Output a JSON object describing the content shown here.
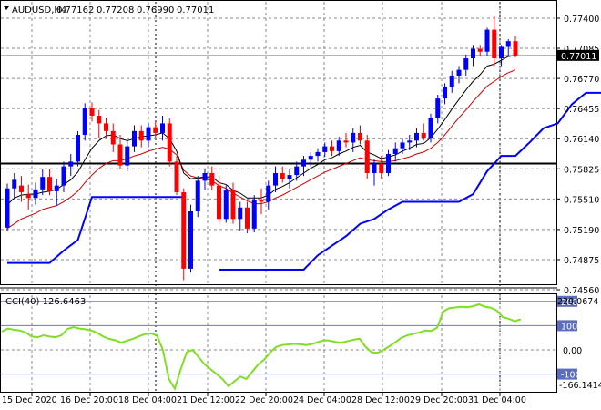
{
  "header": {
    "symbol": "AUDUSD,H4",
    "open": "0.77162",
    "high": "0.77208",
    "low": "0.76990",
    "close": "0.77011"
  },
  "price_axis": {
    "ticks": [
      {
        "label": "0.77400",
        "value": 0.774
      },
      {
        "label": "0.77085",
        "value": 0.77085
      },
      {
        "label": "0.76770",
        "value": 0.7677
      },
      {
        "label": "0.76455",
        "value": 0.76455
      },
      {
        "label": "0.76140",
        "value": 0.7614
      },
      {
        "label": "0.75825",
        "value": 0.75825
      },
      {
        "label": "0.75510",
        "value": 0.7551
      },
      {
        "label": "0.75190",
        "value": 0.7519
      },
      {
        "label": "0.74875",
        "value": 0.74875
      },
      {
        "label": "0.74560",
        "value": 0.7456
      }
    ],
    "current_price_label": "0.77011",
    "current_price": 0.77011,
    "hline_price": 0.7588
  },
  "cci": {
    "label": "CCI(40) 126.6463",
    "max_label": "229.0674",
    "min_label": "-166.1414",
    "levels": [
      {
        "label": "200",
        "value": 200
      },
      {
        "label": "100",
        "value": 100
      },
      {
        "label": "0.00",
        "value": 0
      },
      {
        "label": "-100",
        "value": -100
      }
    ],
    "line_color": "#7fdf22",
    "values": [
      75,
      88,
      83,
      80,
      72,
      55,
      52,
      60,
      55,
      52,
      60,
      86,
      94,
      88,
      85,
      80,
      70,
      55,
      45,
      40,
      30,
      38,
      46,
      56,
      65,
      68,
      60,
      0,
      -120,
      -160,
      -80,
      -10,
      0,
      -30,
      -60,
      -80,
      -100,
      -120,
      -150,
      -130,
      -110,
      -120,
      -90,
      -60,
      -40,
      -10,
      12,
      20,
      22,
      25,
      23,
      20,
      24,
      32,
      40,
      38,
      32,
      30,
      36,
      42,
      46,
      12,
      -10,
      -12,
      0,
      15,
      32,
      50,
      60,
      66,
      72,
      80,
      78,
      92,
      158,
      172,
      175,
      178,
      176,
      180,
      188,
      178,
      174,
      162,
      135,
      128,
      118,
      126
    ]
  },
  "time_axis": [
    "15 Dec 2020",
    "16 Dec 20:00",
    "18 Dec 04:00",
    "21 Dec 12:00",
    "22 Dec 20:00",
    "24 Dec 04:00",
    "28 Dec 12:00",
    "29 Dec 20:00",
    "31 Dec 04:00"
  ],
  "chart_data": {
    "type": "candlestick",
    "bull_color": "#0000ff",
    "bear_color": "#ff0000",
    "candles": [
      [
        0.7521,
        0.7567,
        0.7518,
        0.7562
      ],
      [
        0.7562,
        0.7578,
        0.7552,
        0.7571
      ],
      [
        0.7565,
        0.7575,
        0.7548,
        0.7558
      ],
      [
        0.7556,
        0.7566,
        0.754,
        0.7552
      ],
      [
        0.7552,
        0.7568,
        0.7545,
        0.7561
      ],
      [
        0.7561,
        0.7582,
        0.7555,
        0.7574
      ],
      [
        0.7574,
        0.7582,
        0.7555,
        0.7559
      ],
      [
        0.7559,
        0.7572,
        0.7544,
        0.7565
      ],
      [
        0.7565,
        0.759,
        0.7558,
        0.7585
      ],
      [
        0.7585,
        0.7598,
        0.7575,
        0.759
      ],
      [
        0.759,
        0.7622,
        0.7585,
        0.7618
      ],
      [
        0.7618,
        0.7651,
        0.7612,
        0.7646
      ],
      [
        0.7646,
        0.7652,
        0.7632,
        0.7638
      ],
      [
        0.7638,
        0.7644,
        0.7615,
        0.763
      ],
      [
        0.763,
        0.7636,
        0.7615,
        0.7622
      ],
      [
        0.7622,
        0.763,
        0.76,
        0.7608
      ],
      [
        0.7608,
        0.7618,
        0.7582,
        0.7586
      ],
      [
        0.7586,
        0.7612,
        0.758,
        0.7606
      ],
      [
        0.7606,
        0.7628,
        0.76,
        0.7622
      ],
      [
        0.7622,
        0.7628,
        0.7605,
        0.7612
      ],
      [
        0.7612,
        0.763,
        0.7605,
        0.7626
      ],
      [
        0.7626,
        0.7632,
        0.7615,
        0.762
      ],
      [
        0.762,
        0.7638,
        0.7612,
        0.763
      ],
      [
        0.763,
        0.7635,
        0.7585,
        0.759
      ],
      [
        0.759,
        0.7596,
        0.7555,
        0.7558
      ],
      [
        0.7558,
        0.7562,
        0.7466,
        0.7478
      ],
      [
        0.7478,
        0.7545,
        0.7474,
        0.7538
      ],
      [
        0.7538,
        0.7575,
        0.7532,
        0.757
      ],
      [
        0.757,
        0.7582,
        0.756,
        0.7578
      ],
      [
        0.7578,
        0.7585,
        0.756,
        0.7565
      ],
      [
        0.7565,
        0.7575,
        0.7525,
        0.753
      ],
      [
        0.753,
        0.7565,
        0.7526,
        0.756
      ],
      [
        0.756,
        0.7568,
        0.7525,
        0.753
      ],
      [
        0.753,
        0.7548,
        0.7518,
        0.7542
      ],
      [
        0.7542,
        0.7548,
        0.7515,
        0.752
      ],
      [
        0.752,
        0.7555,
        0.7516,
        0.755
      ],
      [
        0.755,
        0.7562,
        0.7535,
        0.7548
      ],
      [
        0.7548,
        0.757,
        0.754,
        0.7565
      ],
      [
        0.7565,
        0.7585,
        0.7558,
        0.7578
      ],
      [
        0.7578,
        0.7585,
        0.7568,
        0.7572
      ],
      [
        0.7572,
        0.7582,
        0.7562,
        0.7576
      ],
      [
        0.7576,
        0.759,
        0.757,
        0.7585
      ],
      [
        0.7585,
        0.7596,
        0.7575,
        0.7592
      ],
      [
        0.7592,
        0.76,
        0.7585,
        0.7596
      ],
      [
        0.7596,
        0.7604,
        0.759,
        0.76
      ],
      [
        0.76,
        0.761,
        0.7595,
        0.7606
      ],
      [
        0.7606,
        0.7612,
        0.7596,
        0.7601
      ],
      [
        0.7601,
        0.7616,
        0.7596,
        0.7612
      ],
      [
        0.7612,
        0.762,
        0.7605,
        0.761
      ],
      [
        0.761,
        0.7625,
        0.76,
        0.762
      ],
      [
        0.762,
        0.7628,
        0.7608,
        0.7612
      ],
      [
        0.7612,
        0.7618,
        0.7572,
        0.7578
      ],
      [
        0.7578,
        0.7592,
        0.7565,
        0.7588
      ],
      [
        0.7588,
        0.7596,
        0.7572,
        0.7578
      ],
      [
        0.7578,
        0.7602,
        0.7575,
        0.7598
      ],
      [
        0.7598,
        0.761,
        0.759,
        0.7604
      ],
      [
        0.7604,
        0.7614,
        0.7598,
        0.761
      ],
      [
        0.761,
        0.7618,
        0.7602,
        0.7612
      ],
      [
        0.7612,
        0.7625,
        0.7605,
        0.762
      ],
      [
        0.762,
        0.763,
        0.7612,
        0.7614
      ],
      [
        0.7614,
        0.764,
        0.761,
        0.7636
      ],
      [
        0.7636,
        0.766,
        0.763,
        0.7656
      ],
      [
        0.7656,
        0.7672,
        0.765,
        0.7668
      ],
      [
        0.7668,
        0.7685,
        0.7662,
        0.768
      ],
      [
        0.768,
        0.769,
        0.7672,
        0.7686
      ],
      [
        0.7686,
        0.7702,
        0.768,
        0.7698
      ],
      [
        0.7698,
        0.7712,
        0.769,
        0.7708
      ],
      [
        0.7708,
        0.7712,
        0.77,
        0.7705
      ],
      [
        0.7705,
        0.773,
        0.77,
        0.7728
      ],
      [
        0.7728,
        0.7742,
        0.769,
        0.7698
      ],
      [
        0.7698,
        0.7712,
        0.769,
        0.771
      ],
      [
        0.771,
        0.7718,
        0.77,
        0.7716
      ],
      [
        0.7716,
        0.7721,
        0.7699,
        0.7701
      ]
    ],
    "ma_black": [
      0.7545,
      0.7552,
      0.7555,
      0.7556,
      0.7556,
      0.7558,
      0.7559,
      0.7561,
      0.7566,
      0.7571,
      0.7579,
      0.7592,
      0.7604,
      0.7612,
      0.7617,
      0.7618,
      0.7614,
      0.7612,
      0.7614,
      0.7616,
      0.7617,
      0.7618,
      0.762,
      0.7614,
      0.7601,
      0.7578,
      0.7572,
      0.7573,
      0.7574,
      0.7574,
      0.7568,
      0.7566,
      0.756,
      0.7557,
      0.7552,
      0.7552,
      0.7552,
      0.7555,
      0.7561,
      0.7564,
      0.7568,
      0.7573,
      0.7578,
      0.7583,
      0.7587,
      0.7592,
      0.7594,
      0.7598,
      0.7601,
      0.7605,
      0.7607,
      0.76,
      0.7597,
      0.7593,
      0.7595,
      0.7597,
      0.7601,
      0.7604,
      0.7608,
      0.7609,
      0.7615,
      0.7624,
      0.7634,
      0.7645,
      0.7655,
      0.7665,
      0.7674,
      0.7681,
      0.769,
      0.7692,
      0.7696,
      0.77,
      0.7701
    ],
    "ma_red": [
      0.752,
      0.7525,
      0.753,
      0.7533,
      0.7536,
      0.754,
      0.7542,
      0.7544,
      0.7548,
      0.7553,
      0.7559,
      0.7568,
      0.7576,
      0.7583,
      0.7588,
      0.7591,
      0.7591,
      0.7593,
      0.7596,
      0.7598,
      0.7601,
      0.7603,
      0.7605,
      0.7603,
      0.7597,
      0.7581,
      0.7575,
      0.7573,
      0.7572,
      0.757,
      0.7565,
      0.7562,
      0.7557,
      0.7553,
      0.7549,
      0.7546,
      0.7546,
      0.7548,
      0.7552,
      0.7555,
      0.7559,
      0.7563,
      0.7567,
      0.7571,
      0.7575,
      0.7579,
      0.7582,
      0.7585,
      0.7588,
      0.7591,
      0.7594,
      0.7592,
      0.7591,
      0.759,
      0.759,
      0.7591,
      0.7593,
      0.7595,
      0.7598,
      0.76,
      0.7604,
      0.761,
      0.7618,
      0.7627,
      0.7636,
      0.7644,
      0.7653,
      0.7661,
      0.7669,
      0.7674,
      0.7679,
      0.7683,
      0.7686
    ],
    "channel_blue": [
      [
        0,
        0.7484
      ],
      [
        6,
        0.7484
      ],
      [
        8,
        0.7497
      ],
      [
        10,
        0.7508
      ],
      [
        12,
        0.7553
      ],
      [
        20,
        0.7553
      ],
      [
        25,
        0.7553
      ],
      [
        25,
        null
      ],
      [
        30,
        0.7477
      ],
      [
        40,
        0.7477
      ],
      [
        42,
        0.7477
      ],
      [
        44,
        0.7492
      ],
      [
        46,
        0.7502
      ],
      [
        48,
        0.7512
      ],
      [
        50,
        0.7525
      ],
      [
        52,
        0.753
      ],
      [
        54,
        0.754
      ],
      [
        56,
        0.7548
      ],
      [
        62,
        0.7548
      ],
      [
        64,
        0.7548
      ],
      [
        66,
        0.7556
      ],
      [
        68,
        0.758
      ],
      [
        70,
        0.7596
      ],
      [
        72,
        0.7596
      ],
      [
        74,
        0.761
      ],
      [
        76,
        0.7625
      ],
      [
        78,
        0.763
      ],
      [
        80,
        0.765
      ],
      [
        82,
        0.7662
      ],
      [
        84,
        0.7662
      ],
      [
        86,
        0.7662
      ]
    ]
  }
}
